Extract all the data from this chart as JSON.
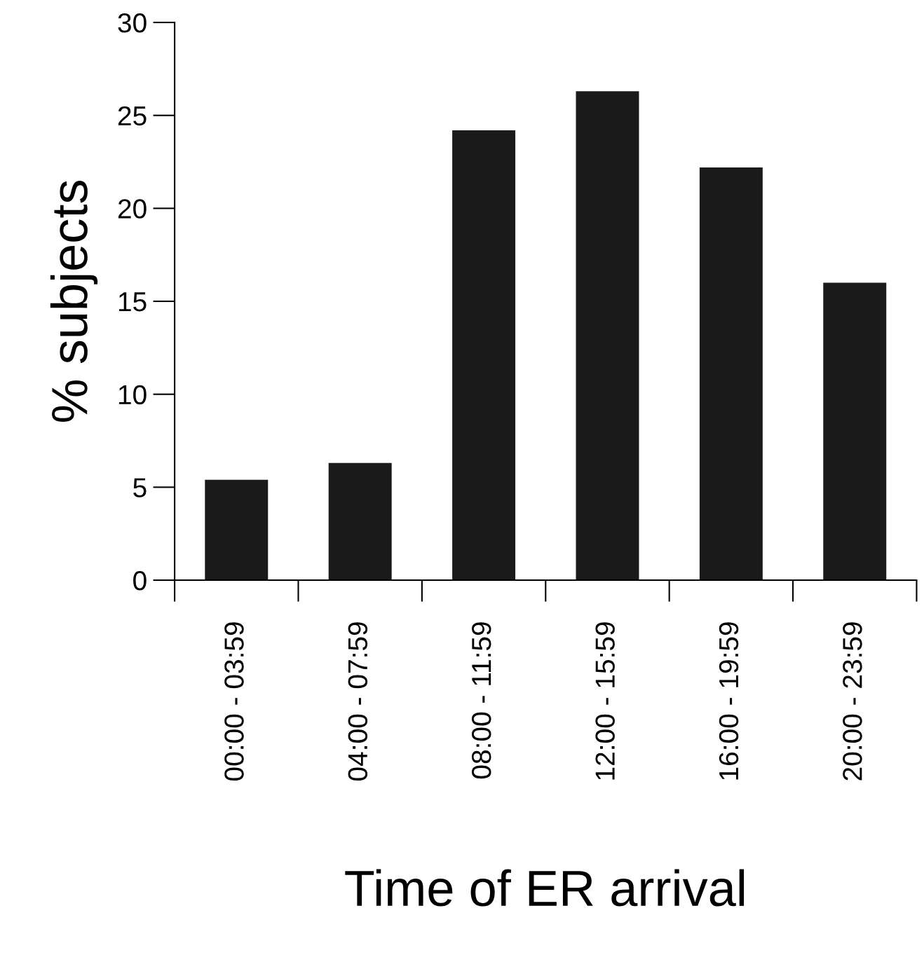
{
  "chart_data": {
    "type": "bar",
    "xlabel": "Time of ER arrival",
    "ylabel": "% subjects",
    "categories": [
      "00:00 - 03:59",
      "04:00 - 07:59",
      "08:00 - 11:59",
      "12:00 - 15:59",
      "16:00 - 19:59",
      "20:00 - 23:59"
    ],
    "values": [
      5.4,
      6.3,
      24.2,
      26.3,
      22.2,
      16.0
    ],
    "color": "#1a1a1a",
    "ylim": [
      0,
      30
    ],
    "yticks": [
      0,
      5,
      10,
      15,
      20,
      25,
      30
    ],
    "grid": false
  }
}
